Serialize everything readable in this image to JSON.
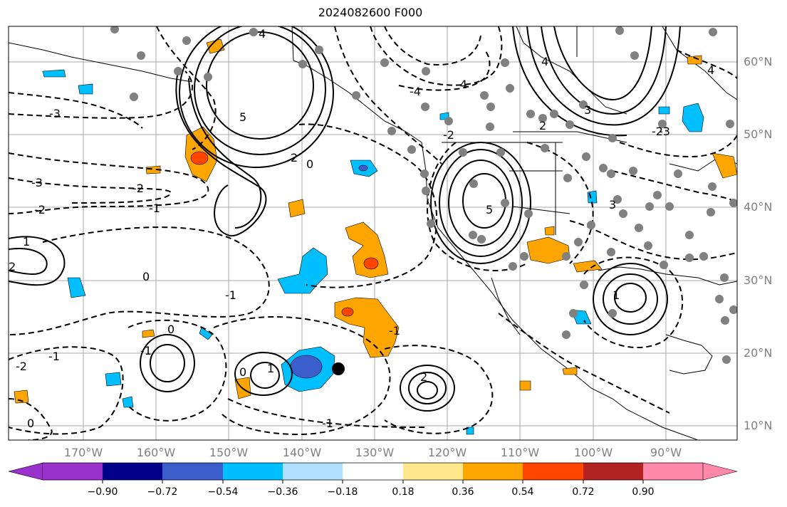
{
  "title": "2024082600 F000",
  "lon_labels": [
    "170°W",
    "160°W",
    "150°W",
    "140°W",
    "130°W",
    "120°W",
    "110°W",
    "100°W",
    "90°W"
  ],
  "lat_labels": [
    "60°N",
    "50°N",
    "40°N",
    "30°N",
    "20°N",
    "10°N"
  ],
  "colorbar": {
    "tick_labels": [
      "−0.90",
      "−0.72",
      "−0.54",
      "−0.36",
      "−0.18",
      "0.18",
      "0.36",
      "0.54",
      "0.72",
      "0.90"
    ],
    "colors": [
      "#9932cc",
      "#00008b",
      "#3a5fcd",
      "#00bfff",
      "#b0e0ff",
      "#ffffff",
      "#ffe88c",
      "#ffa500",
      "#ff4500",
      "#b22222",
      "#ff88aa"
    ]
  },
  "contour_labels": [
    "4",
    "5",
    "2",
    "0",
    "-1",
    "-2",
    "-3",
    "-4",
    "2",
    "3",
    "4",
    "5",
    "-2",
    "0",
    "1",
    "-1",
    "2",
    "-1",
    "0",
    "-1",
    "0",
    "1",
    "-2",
    "-1",
    "0",
    "-3",
    "-2",
    "-1",
    "1",
    "2",
    "-2",
    "3",
    "-4",
    "4",
    "-3"
  ],
  "colors": {
    "positive_fill": "#ffa500",
    "strong_positive_fill": "#ff4500",
    "negative_fill": "#00bfff",
    "strong_negative_fill": "#3a5fcd",
    "grid": "#aaaaaa",
    "stations": "#808080"
  }
}
